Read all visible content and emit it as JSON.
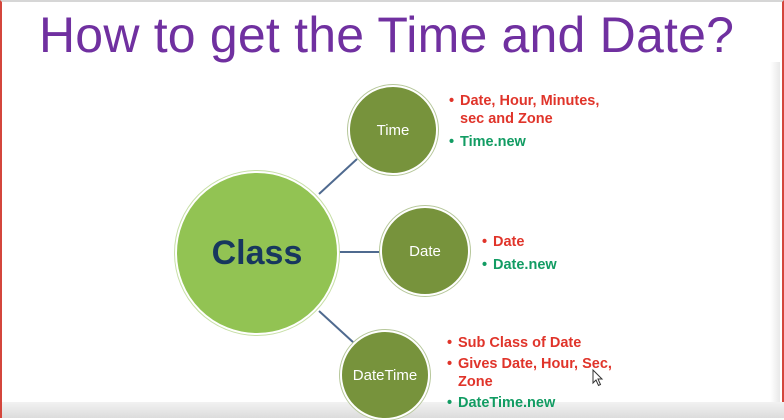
{
  "slide": {
    "title": "How to get the Time and Date?"
  },
  "diagram": {
    "center": {
      "label": "Class"
    },
    "nodes": [
      {
        "label": "Time",
        "bullets": [
          {
            "text": "Date, Hour, Minutes, sec and Zone",
            "color": "#e0342a"
          },
          {
            "text": "Time.new",
            "color": "#129c63"
          }
        ]
      },
      {
        "label": "Date",
        "bullets": [
          {
            "text": "Date",
            "color": "#e0342a"
          },
          {
            "text": "Date.new",
            "color": "#129c63"
          }
        ]
      },
      {
        "label": "DateTime",
        "bullets": [
          {
            "text": "Sub Class of Date",
            "color": "#e0342a"
          },
          {
            "text": "Gives Date, Hour, Sec, Zone",
            "color": "#e0342a"
          },
          {
            "text": "DateTime.new",
            "color": "#129c63"
          }
        ]
      }
    ]
  },
  "colors": {
    "title": "#7030a0",
    "center_fill": "#92c353",
    "node_fill": "#77933c",
    "center_text": "#17375e",
    "connector": "#4f6a8f"
  },
  "icons": {
    "cursor": "mouse-pointer-icon"
  }
}
